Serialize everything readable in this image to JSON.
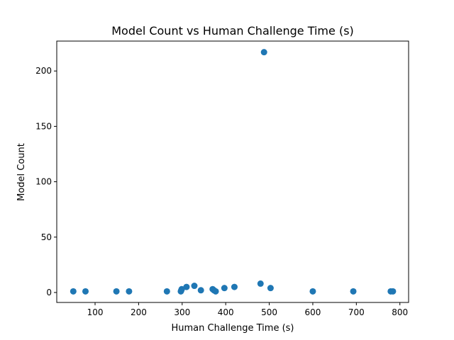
{
  "chart_data": {
    "type": "scatter",
    "title": "Model Count vs Human Challenge Time (s)",
    "xlabel": "Human Challenge Time (s)",
    "ylabel": "Model Count",
    "xlim": [
      12,
      820
    ],
    "ylim": [
      -9,
      227
    ],
    "xticks": [
      100,
      200,
      300,
      400,
      500,
      600,
      700,
      800
    ],
    "yticks": [
      0,
      50,
      100,
      150,
      200
    ],
    "grid": false,
    "marker_color": "#1f77b4",
    "series": [
      {
        "points": [
          [
            50,
            1
          ],
          [
            78,
            1
          ],
          [
            149,
            1
          ],
          [
            178,
            1
          ],
          [
            265,
            1
          ],
          [
            297,
            1
          ],
          [
            298,
            2
          ],
          [
            299,
            3
          ],
          [
            310,
            5
          ],
          [
            328,
            6
          ],
          [
            343,
            2
          ],
          [
            370,
            3
          ],
          [
            373,
            2
          ],
          [
            377,
            1
          ],
          [
            397,
            4
          ],
          [
            420,
            5
          ],
          [
            480,
            8
          ],
          [
            488,
            217
          ],
          [
            503,
            4
          ],
          [
            600,
            1
          ],
          [
            693,
            1
          ],
          [
            779,
            1
          ],
          [
            784,
            1
          ]
        ]
      }
    ]
  }
}
